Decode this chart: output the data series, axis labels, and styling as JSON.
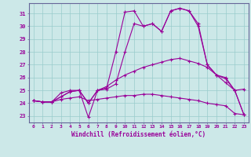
{
  "xlabel": "Windchill (Refroidissement éolien,°C)",
  "bg_color": "#cce8e8",
  "grid_color": "#99cccc",
  "line_color": "#990099",
  "spine_color": "#666699",
  "xlim": [
    -0.5,
    23.5
  ],
  "ylim": [
    22.5,
    31.8
  ],
  "xticks": [
    0,
    1,
    2,
    3,
    4,
    5,
    6,
    7,
    8,
    9,
    10,
    11,
    12,
    13,
    14,
    15,
    16,
    17,
    18,
    19,
    20,
    21,
    22,
    23
  ],
  "yticks": [
    23,
    24,
    25,
    26,
    27,
    28,
    29,
    30,
    31
  ],
  "series": [
    [
      24.2,
      24.1,
      24.1,
      24.8,
      25.0,
      25.0,
      22.9,
      25.0,
      25.2,
      28.0,
      31.1,
      31.2,
      30.0,
      30.2,
      29.6,
      31.2,
      31.4,
      31.2,
      30.2,
      27.0,
      26.2,
      26.0,
      25.0,
      25.1
    ],
    [
      24.2,
      24.1,
      24.1,
      24.5,
      24.9,
      25.0,
      24.0,
      25.0,
      25.1,
      25.5,
      28.0,
      30.2,
      30.0,
      30.2,
      29.6,
      31.2,
      31.4,
      31.2,
      30.0,
      27.0,
      26.2,
      25.9,
      25.0,
      23.1
    ],
    [
      24.2,
      24.1,
      24.1,
      24.5,
      24.9,
      25.0,
      24.0,
      25.0,
      25.3,
      25.8,
      26.2,
      26.5,
      26.8,
      27.0,
      27.2,
      27.4,
      27.5,
      27.3,
      27.1,
      26.8,
      26.2,
      25.6,
      25.0,
      23.1
    ],
    [
      24.2,
      24.1,
      24.1,
      24.3,
      24.4,
      24.5,
      24.2,
      24.3,
      24.4,
      24.5,
      24.6,
      24.6,
      24.7,
      24.7,
      24.6,
      24.5,
      24.4,
      24.3,
      24.2,
      24.0,
      23.9,
      23.8,
      23.2,
      23.1
    ]
  ]
}
